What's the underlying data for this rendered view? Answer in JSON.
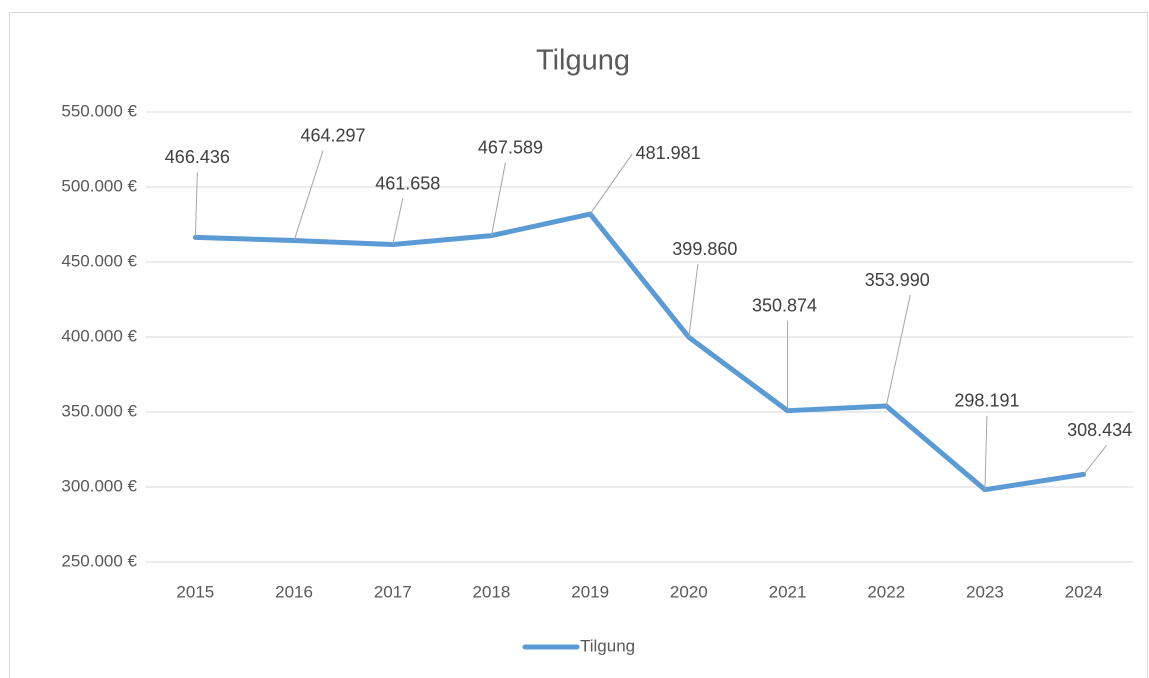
{
  "chart_data": {
    "type": "line",
    "title": "Tilgung",
    "categories": [
      "2015",
      "2016",
      "2017",
      "2018",
      "2019",
      "2020",
      "2021",
      "2022",
      "2023",
      "2024"
    ],
    "series": [
      {
        "name": "Tilgung",
        "color": "#5b9bd5",
        "values": [
          466436,
          464297,
          461658,
          467589,
          481981,
          399860,
          350874,
          353990,
          298191,
          308434
        ],
        "value_labels": [
          "466.436",
          "464.297",
          "461.658",
          "467.589",
          "481.981",
          "399.860",
          "350.874",
          "353.990",
          "298.191",
          "308.434"
        ]
      }
    ],
    "ylim": [
      250000,
      550000
    ],
    "yticks": [
      {
        "value": 250000,
        "label": "250.000 €"
      },
      {
        "value": 300000,
        "label": "300.000 €"
      },
      {
        "value": 350000,
        "label": "350.000 €"
      },
      {
        "value": 400000,
        "label": "400.000 €"
      },
      {
        "value": 450000,
        "label": "450.000 €"
      },
      {
        "value": 500000,
        "label": "500.000 €"
      },
      {
        "value": 550000,
        "label": "550.000 €"
      }
    ],
    "grid": true,
    "legend": "bottom"
  }
}
